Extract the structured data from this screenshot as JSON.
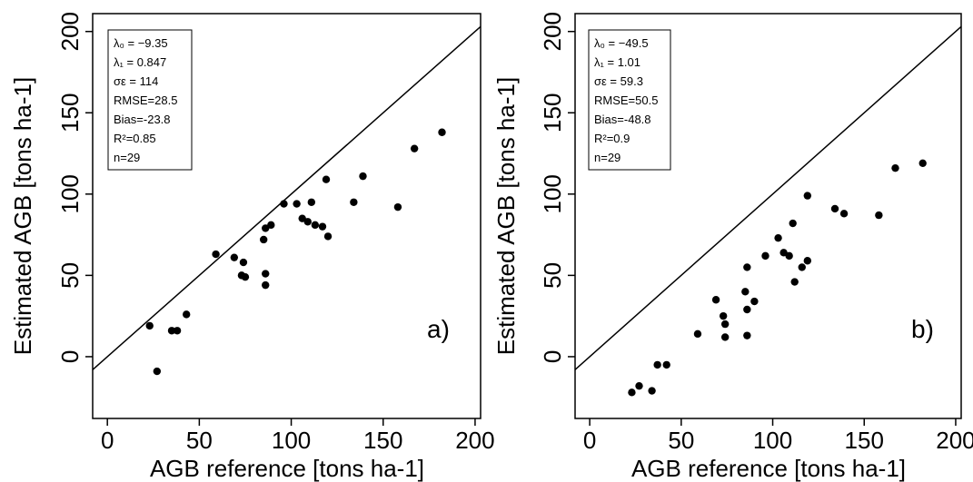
{
  "chart_data": [
    {
      "type": "scatter",
      "panel_label": "a)",
      "xlabel": "AGB reference [tons ha-1]",
      "ylabel": "Estimated AGB [tons ha-1]",
      "xlim": [
        -8,
        203
      ],
      "ylim": [
        -38,
        211
      ],
      "xticks": [
        "0",
        "50",
        "100",
        "150",
        "200"
      ],
      "yticks": [
        "0",
        "50",
        "100",
        "150",
        "200"
      ],
      "xtick_values": [
        0,
        50,
        100,
        150,
        200
      ],
      "ytick_values": [
        0,
        50,
        100,
        150,
        200
      ],
      "reference_line": "1:1",
      "grid": false,
      "stats_box": {
        "lambda0": "λ₀ = −9.35",
        "lambda1": "λ₁ = 0.847",
        "sigma": "σε = 114",
        "rmse": "RMSE=28.5",
        "bias": "Bias=-23.8",
        "r2": "R²=0.85",
        "n": "n=29"
      },
      "points": [
        [
          23,
          19
        ],
        [
          27,
          -9
        ],
        [
          35,
          16
        ],
        [
          38,
          16
        ],
        [
          43,
          26
        ],
        [
          59,
          63
        ],
        [
          69,
          61
        ],
        [
          73,
          50
        ],
        [
          74,
          58
        ],
        [
          75,
          49
        ],
        [
          85,
          72
        ],
        [
          86,
          79
        ],
        [
          86,
          51
        ],
        [
          86,
          44
        ],
        [
          89,
          81
        ],
        [
          96,
          94
        ],
        [
          103,
          94
        ],
        [
          106,
          85
        ],
        [
          109,
          83
        ],
        [
          111,
          95
        ],
        [
          113,
          81
        ],
        [
          117,
          80
        ],
        [
          119,
          109
        ],
        [
          120,
          74
        ],
        [
          134,
          95
        ],
        [
          139,
          111
        ],
        [
          158,
          92
        ],
        [
          167,
          128
        ],
        [
          182,
          138
        ]
      ]
    },
    {
      "type": "scatter",
      "panel_label": "b)",
      "xlabel": "AGB reference [tons ha-1]",
      "ylabel": "Estimated AGB [tons ha-1]",
      "xlim": [
        -8,
        203
      ],
      "ylim": [
        -38,
        211
      ],
      "xticks": [
        "0",
        "50",
        "100",
        "150",
        "200"
      ],
      "yticks": [
        "0",
        "50",
        "100",
        "150",
        "200"
      ],
      "xtick_values": [
        0,
        50,
        100,
        150,
        200
      ],
      "ytick_values": [
        0,
        50,
        100,
        150,
        200
      ],
      "reference_line": "1:1",
      "grid": false,
      "stats_box": {
        "lambda0": "λ₀ = −49.5",
        "lambda1": "λ₁ = 1.01",
        "sigma": "σε = 59.3",
        "rmse": "RMSE=50.5",
        "bias": "Bias=-48.8",
        "r2": "R²=0.9",
        "n": "n=29"
      },
      "points": [
        [
          23,
          -22
        ],
        [
          27,
          -18
        ],
        [
          34,
          -21
        ],
        [
          37,
          -5
        ],
        [
          42,
          -5
        ],
        [
          59,
          14
        ],
        [
          69,
          35
        ],
        [
          73,
          25
        ],
        [
          74,
          20
        ],
        [
          74,
          12
        ],
        [
          85,
          40
        ],
        [
          86,
          55
        ],
        [
          86,
          29
        ],
        [
          86,
          13
        ],
        [
          90,
          34
        ],
        [
          96,
          62
        ],
        [
          103,
          73
        ],
        [
          106,
          64
        ],
        [
          109,
          62
        ],
        [
          111,
          82
        ],
        [
          112,
          46
        ],
        [
          116,
          55
        ],
        [
          119,
          99
        ],
        [
          119,
          59
        ],
        [
          134,
          91
        ],
        [
          139,
          88
        ],
        [
          158,
          87
        ],
        [
          167,
          116
        ],
        [
          182,
          119
        ]
      ]
    }
  ]
}
